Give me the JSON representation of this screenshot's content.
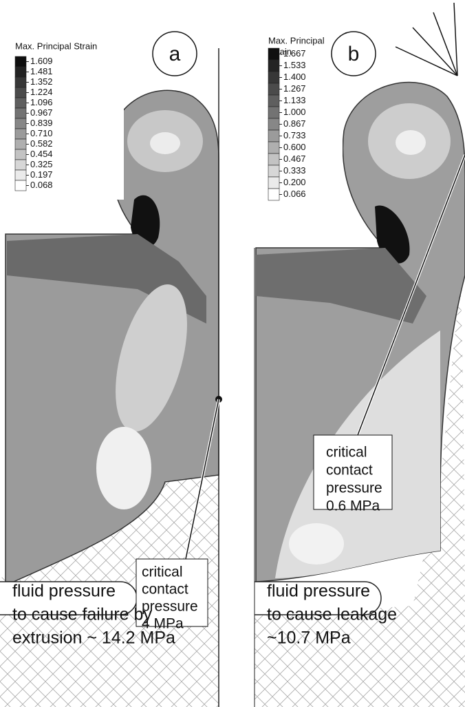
{
  "panels": [
    {
      "label": "a",
      "legend_title": [
        "Max. Principal Strain"
      ],
      "legend_levels": [
        "1.609",
        "1.481",
        "1.352",
        "1.224",
        "1.096",
        "0.967",
        "0.839",
        "0.710",
        "0.582",
        "0.454",
        "0.325",
        "0.197",
        "0.068"
      ],
      "callout": [
        "critical",
        "contact",
        "pressure",
        "4 MPa"
      ],
      "caption": [
        "fluid pressure",
        "to cause failure by",
        "extrusion ~ 14.2 MPa"
      ]
    },
    {
      "label": "b",
      "legend_title": [
        "Max. Principal",
        "Strain"
      ],
      "legend_levels": [
        "1.667",
        "1.533",
        "1.400",
        "1.267",
        "1.133",
        "1.000",
        "0.867",
        "0.733",
        "0.600",
        "0.467",
        "0.333",
        "0.200",
        "0.066"
      ],
      "callout": [
        "critical",
        "contact",
        "pressure",
        "0.6 MPa"
      ],
      "caption": [
        "fluid pressure",
        "to cause leakage",
        "~10.7 MPa"
      ]
    }
  ]
}
